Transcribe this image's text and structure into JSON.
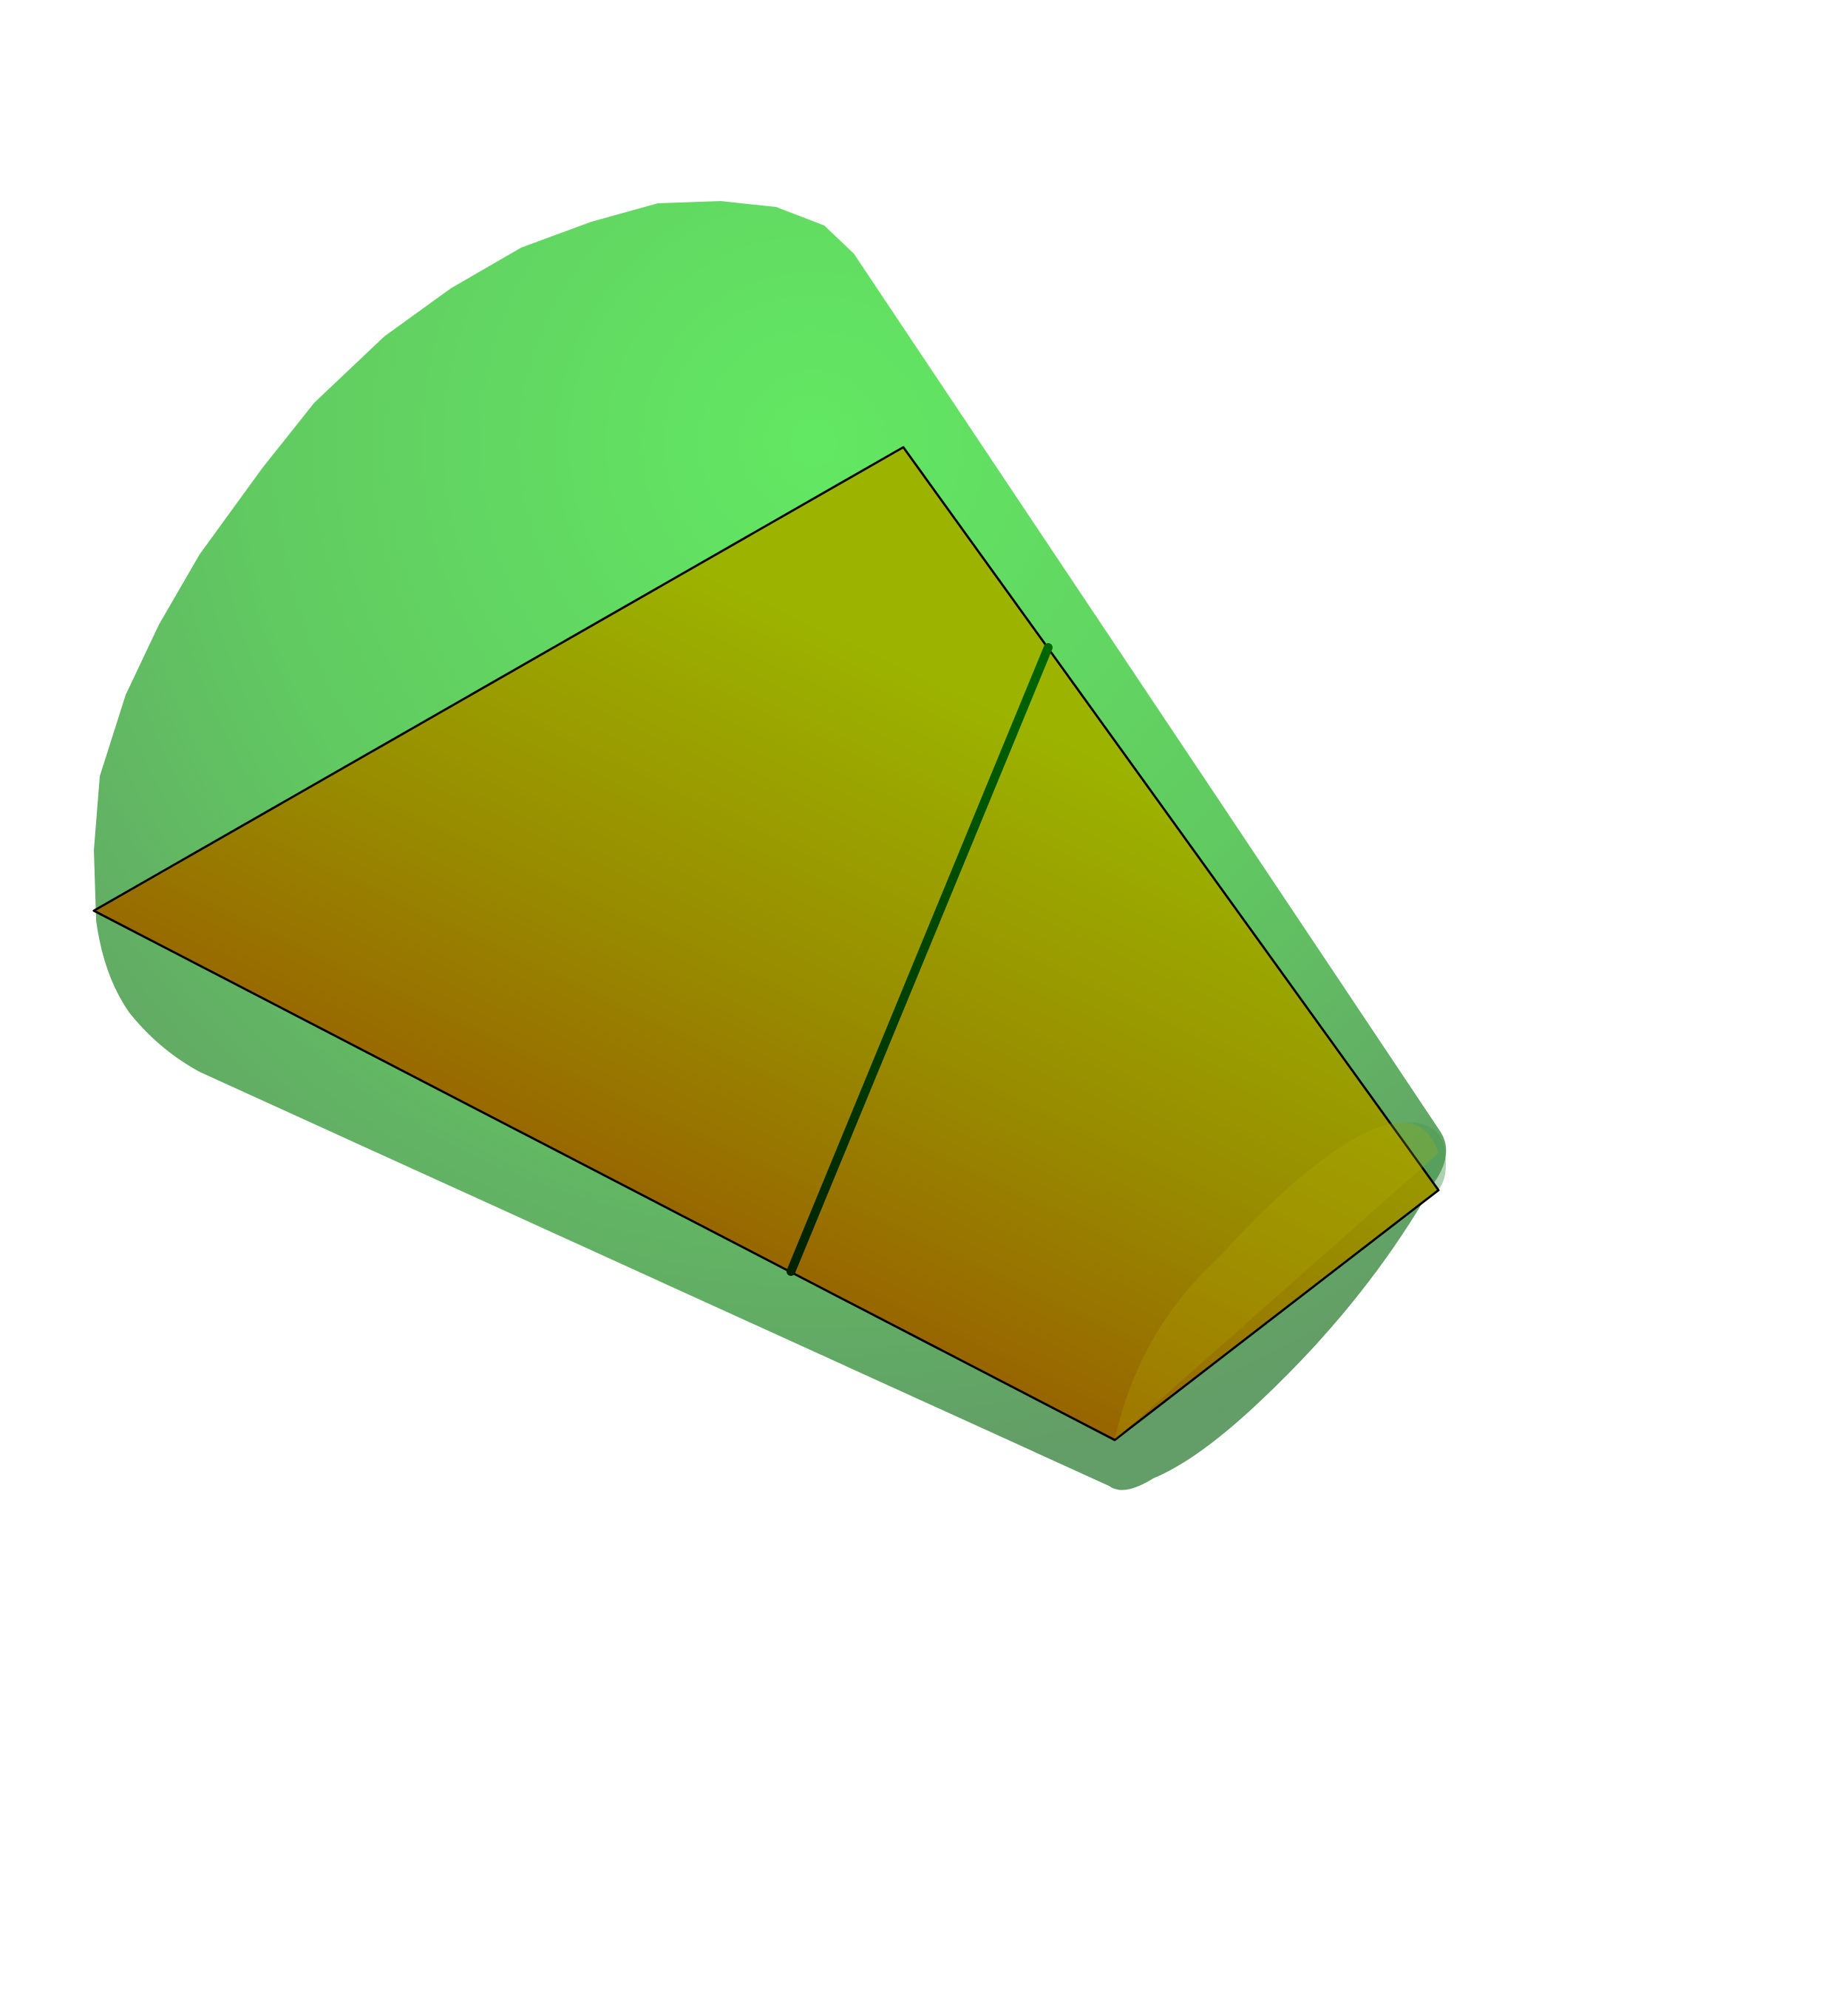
{
  "figure": {
    "kind": "3d-solid",
    "solid": "truncated-cone",
    "section": "trapezoid-axial-cross-section",
    "segment": "slanted-line-between-parallel-sides"
  },
  "colors": {
    "background": "#ffffff",
    "cone_light": "#5ee85e",
    "cone_mid": "#5cc85c",
    "cone_dark": "#5e9a62",
    "section_light": "#9cb400",
    "section_mid": "#988c00",
    "section_dark": "#985a00",
    "edge": "#000000",
    "segment_top": "#006600",
    "segment_bottom": "#002200"
  }
}
